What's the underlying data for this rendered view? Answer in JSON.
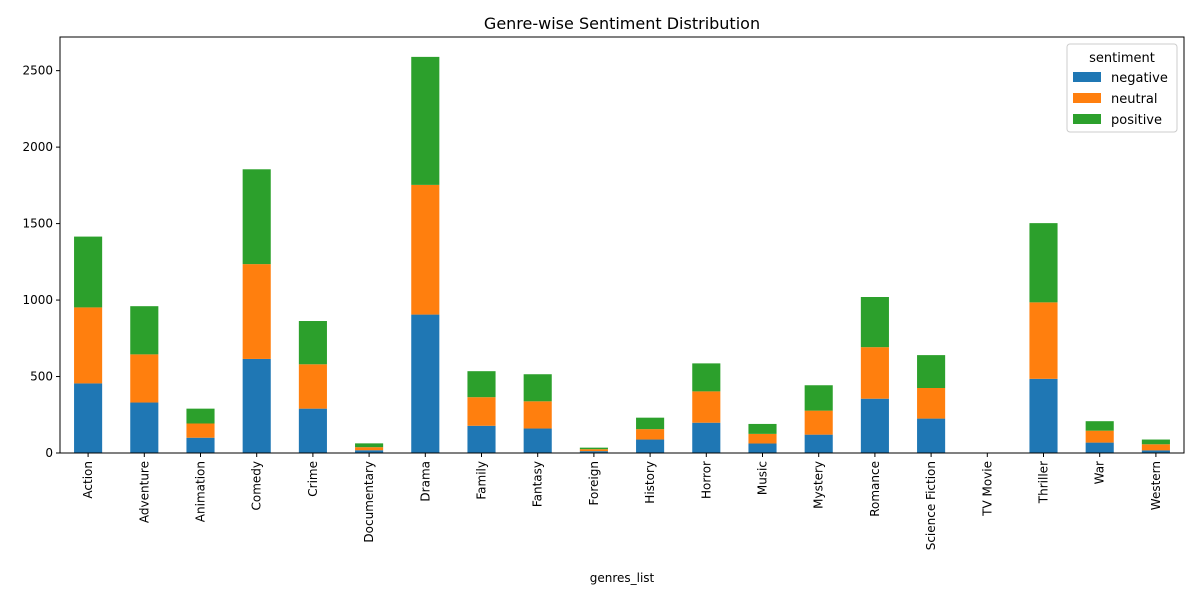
{
  "chart_data": {
    "type": "bar",
    "stacked": true,
    "title": "Genre-wise Sentiment Distribution",
    "xlabel": "genres_list",
    "ylabel": "",
    "ylim": [
      0,
      2720
    ],
    "yticks": [
      0,
      500,
      1000,
      1500,
      2000,
      2500
    ],
    "grid": false,
    "legend": {
      "title": "sentiment",
      "placement": "top-right"
    },
    "categories": [
      "Action",
      "Adventure",
      "Animation",
      "Comedy",
      "Crime",
      "Documentary",
      "Drama",
      "Family",
      "Fantasy",
      "Foreign",
      "History",
      "Horror",
      "Music",
      "Mystery",
      "Romance",
      "Science Fiction",
      "TV Movie",
      "Thriller",
      "War",
      "Western"
    ],
    "series": [
      {
        "name": "negative",
        "color": "#1f77b4",
        "values": [
          455,
          330,
          100,
          615,
          290,
          18,
          905,
          178,
          160,
          12,
          88,
          198,
          62,
          120,
          355,
          225,
          1,
          485,
          68,
          17
        ]
      },
      {
        "name": "neutral",
        "color": "#ff7f0e",
        "values": [
          497,
          315,
          93,
          620,
          290,
          20,
          848,
          187,
          178,
          13,
          68,
          205,
          63,
          157,
          337,
          200,
          1,
          500,
          78,
          40
        ]
      },
      {
        "name": "positive",
        "color": "#2ca02c",
        "values": [
          463,
          315,
          97,
          620,
          283,
          25,
          837,
          170,
          177,
          10,
          75,
          183,
          65,
          166,
          328,
          215,
          0,
          518,
          62,
          31
        ]
      }
    ]
  }
}
